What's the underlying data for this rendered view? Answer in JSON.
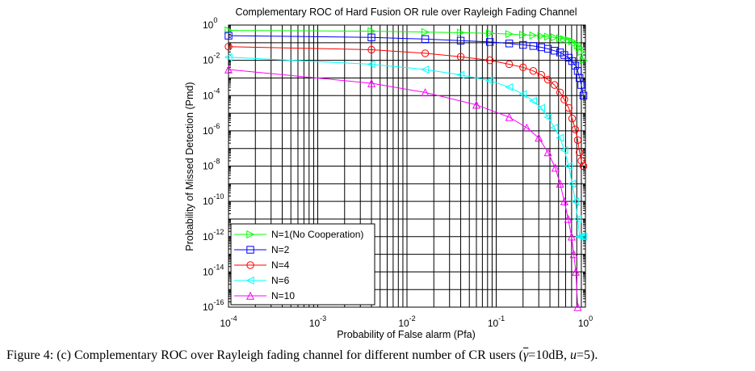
{
  "chart_data": {
    "type": "line",
    "title": "Complementary ROC of Hard Fusion OR rule over Rayleigh Fading Channel",
    "xlabel": "Probability of False alarm (Pfa)",
    "ylabel": "Probability of Missed Detection (Pmd)",
    "xscale": "log",
    "yscale": "log",
    "xlim": [
      0.0001,
      1
    ],
    "ylim": [
      1e-16,
      1
    ],
    "grid": true,
    "legend_position": "bottom-left",
    "x_tick_labels": [
      {
        "base": "10",
        "exp": "-4",
        "value": 0.0001
      },
      {
        "base": "10",
        "exp": "-3",
        "value": 0.001
      },
      {
        "base": "10",
        "exp": "-2",
        "value": 0.01
      },
      {
        "base": "10",
        "exp": "-1",
        "value": 0.1
      },
      {
        "base": "10",
        "exp": "0",
        "value": 1
      }
    ],
    "y_tick_labels": [
      {
        "base": "10",
        "exp": "0",
        "value": 1
      },
      {
        "base": "10",
        "exp": "-2",
        "value": 0.01
      },
      {
        "base": "10",
        "exp": "-4",
        "value": 0.0001
      },
      {
        "base": "10",
        "exp": "-6",
        "value": 1e-06
      },
      {
        "base": "10",
        "exp": "-8",
        "value": 1e-08
      },
      {
        "base": "10",
        "exp": "-10",
        "value": 1e-10
      },
      {
        "base": "10",
        "exp": "-12",
        "value": 1e-12
      },
      {
        "base": "10",
        "exp": "-14",
        "value": 1e-14
      },
      {
        "base": "10",
        "exp": "-16",
        "value": 1e-16
      }
    ],
    "series": [
      {
        "name": "N=1(No Cooperation)",
        "color": "#00ff00",
        "marker": "triangle-right",
        "x": [
          0.0001,
          0.004,
          0.016,
          0.04,
          0.085,
          0.14,
          0.2,
          0.26,
          0.32,
          0.38,
          0.45,
          0.52,
          0.58,
          0.65,
          0.71,
          0.77,
          0.82,
          0.86,
          0.9,
          0.95
        ],
        "y": [
          0.5,
          0.45,
          0.4,
          0.37,
          0.34,
          0.31,
          0.28,
          0.26,
          0.24,
          0.22,
          0.2,
          0.18,
          0.16,
          0.14,
          0.12,
          0.1,
          0.07,
          0.05,
          0.03,
          0.01
        ]
      },
      {
        "name": "N=2",
        "color": "#0000ff",
        "marker": "square",
        "x": [
          0.0001,
          0.004,
          0.016,
          0.04,
          0.085,
          0.14,
          0.2,
          0.26,
          0.32,
          0.38,
          0.45,
          0.52,
          0.58,
          0.65,
          0.71,
          0.77,
          0.82,
          0.86,
          0.9,
          0.95
        ],
        "y": [
          0.25,
          0.2,
          0.16,
          0.13,
          0.11,
          0.09,
          0.075,
          0.065,
          0.055,
          0.045,
          0.035,
          0.028,
          0.02,
          0.014,
          0.009,
          0.005,
          0.0025,
          0.001,
          0.0004,
          0.0001
        ]
      },
      {
        "name": "N=4",
        "color": "#ff0000",
        "marker": "circle",
        "x": [
          0.0001,
          0.004,
          0.016,
          0.04,
          0.085,
          0.14,
          0.2,
          0.26,
          0.32,
          0.38,
          0.45,
          0.52,
          0.58,
          0.65,
          0.71,
          0.77,
          0.82,
          0.86,
          0.9,
          0.95
        ],
        "y": [
          0.06,
          0.04,
          0.025,
          0.016,
          0.01,
          0.006,
          0.004,
          0.0025,
          0.0015,
          0.0008,
          0.0004,
          0.00015,
          6e-05,
          2e-05,
          5e-06,
          1.2e-06,
          3e-07,
          6e-08,
          2e-08,
          1e-08
        ]
      },
      {
        "name": "N=6",
        "color": "#00ffff",
        "marker": "triangle-left",
        "x": [
          0.0001,
          0.004,
          0.016,
          0.04,
          0.085,
          0.14,
          0.2,
          0.26,
          0.32,
          0.38,
          0.45,
          0.52,
          0.58,
          0.65,
          0.71,
          0.77,
          0.82,
          0.86,
          0.9,
          0.95
        ],
        "y": [
          0.015,
          0.006,
          0.003,
          0.0015,
          0.0007,
          0.0003,
          0.00012,
          5e-05,
          2e-05,
          6e-06,
          1.5e-06,
          4e-07,
          8e-08,
          1e-08,
          1e-09,
          1e-10,
          1e-11,
          1e-12,
          1e-12,
          1e-12
        ]
      },
      {
        "name": "N=10",
        "color": "#ff00ff",
        "marker": "triangle-up",
        "x": [
          0.0001,
          0.004,
          0.016,
          0.06,
          0.14,
          0.22,
          0.3,
          0.38,
          0.46,
          0.52,
          0.58,
          0.64,
          0.7,
          0.74,
          0.78,
          0.82
        ],
        "y": [
          0.003,
          0.0005,
          0.00015,
          3e-05,
          6e-06,
          1.5e-06,
          4e-07,
          6e-08,
          8e-09,
          1e-09,
          1e-10,
          1e-11,
          1e-12,
          1e-13,
          1e-14,
          1e-16
        ]
      }
    ]
  },
  "caption": {
    "prefix": "Figure 4: (c) Complementary ROC over Rayleigh fading channel for different number of CR users (",
    "gamma": "γ",
    "mid": "=10dB, ",
    "u": "u",
    "suffix": "=5)."
  }
}
